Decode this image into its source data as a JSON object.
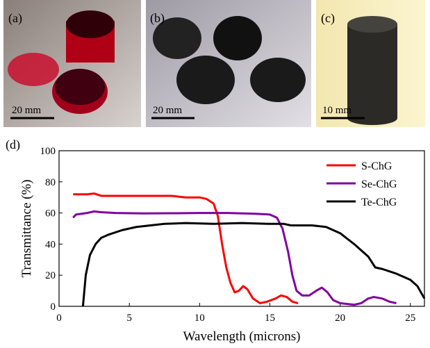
{
  "images": [
    {
      "label": "(a)",
      "scale": "20 mm"
    },
    {
      "label": "(b)",
      "scale": "20 mm"
    },
    {
      "label": "(c)",
      "scale": "10 mm"
    }
  ],
  "chart_data": {
    "type": "line",
    "panel_label": "(d)",
    "x_label": "Wavelength (microns)",
    "y_label": "Transmittance (%)",
    "xlim": [
      0,
      26
    ],
    "ylim": [
      0,
      100
    ],
    "xticks": [
      0,
      5,
      10,
      15,
      20,
      25
    ],
    "yticks": [
      0,
      20,
      40,
      60,
      80,
      100
    ],
    "legend": "upper right",
    "series": [
      {
        "name": "S-ChG",
        "color": "#ff0000",
        "x": [
          1,
          2,
          2.5,
          3,
          5,
          8,
          9,
          10,
          10.5,
          11,
          11.3,
          11.6,
          11.9,
          12.2,
          12.5,
          12.8,
          13.1,
          13.4,
          13.8,
          14.3,
          14.8,
          15.4,
          15.8,
          16.2,
          16.6,
          17
        ],
        "values": [
          72,
          72,
          72.5,
          71,
          71,
          71,
          70,
          70,
          69,
          66,
          58,
          40,
          25,
          15,
          9,
          10,
          13,
          11,
          5,
          2,
          3,
          5,
          7,
          6,
          3,
          2
        ]
      },
      {
        "name": "Se-ChG",
        "color": "#8000a0",
        "x": [
          1,
          1.2,
          2,
          2.5,
          3,
          4,
          6,
          8,
          10,
          12,
          14,
          15,
          15.5,
          15.9,
          16.3,
          16.6,
          16.9,
          17.3,
          17.8,
          18.3,
          18.7,
          19.1,
          19.5,
          20,
          21,
          21.5,
          22,
          22.4,
          23,
          23.5,
          24
        ],
        "values": [
          57,
          59,
          60,
          61,
          60.5,
          60,
          59.7,
          59.8,
          60,
          60,
          59.5,
          59,
          57,
          50,
          35,
          20,
          10,
          7,
          7,
          10,
          12,
          9,
          4,
          2,
          1,
          2,
          5,
          6,
          5,
          3,
          2
        ]
      },
      {
        "name": "Te-ChG",
        "color": "#000000",
        "x": [
          1.7,
          1.9,
          2.2,
          2.6,
          3,
          3.5,
          4.5,
          5.5,
          6.5,
          7.5,
          9,
          11,
          13,
          15,
          16,
          16.5,
          18,
          19,
          20,
          21,
          22,
          22.5,
          23,
          24,
          25,
          25.5,
          26
        ],
        "values": [
          0,
          20,
          33,
          40,
          44,
          46,
          49,
          51,
          52,
          53,
          53.5,
          53,
          53.5,
          53,
          53,
          52,
          52,
          51,
          47,
          40,
          32,
          25,
          24,
          21,
          17,
          13,
          5
        ]
      }
    ]
  }
}
